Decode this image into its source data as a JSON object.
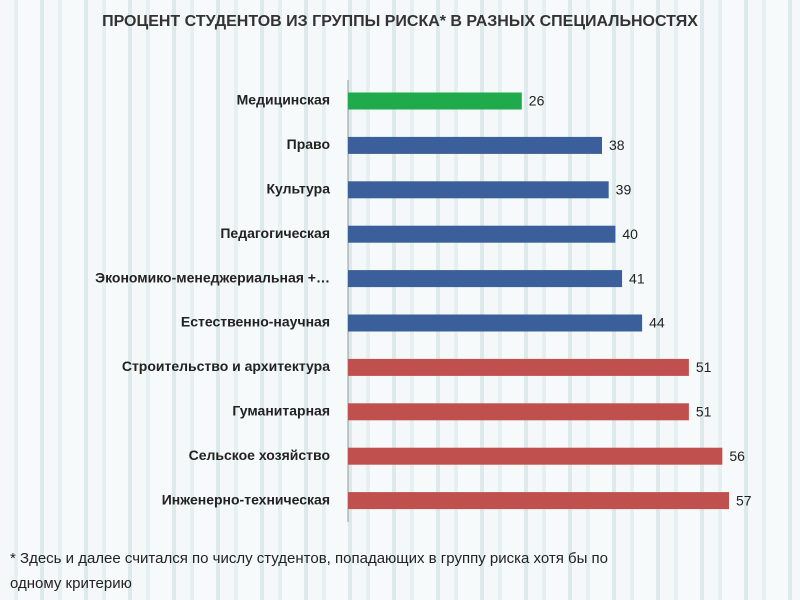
{
  "chart_data": {
    "type": "hbar",
    "title": "ПРОЦЕНТ СТУДЕНТОВ ИЗ ГРУППЫ РИСКА*  В РАЗНЫХ СПЕЦИАЛЬНОСТЯХ",
    "categories": [
      "Медицинская",
      "Право",
      "Культура",
      "Педагогическая",
      "Экономико-менеджериальная +…",
      "Естественно-научная",
      "Строительство и архитектура",
      "Гуманитарная",
      "Сельское хозяйство",
      "Инженерно-техническая"
    ],
    "values": [
      26,
      38,
      39,
      40,
      41,
      44,
      51,
      51,
      56,
      57
    ],
    "colors": [
      "#1faa4b",
      "#3a5f9a",
      "#3a5f9a",
      "#3a5f9a",
      "#3a5f9a",
      "#3a5f9a",
      "#c0504d",
      "#c0504d",
      "#c0504d",
      "#c0504d"
    ],
    "footnote": [
      "* Здесь и далее считался по числу студентов, попадающих в группу риска хотя бы по",
      "одному критерию"
    ]
  }
}
